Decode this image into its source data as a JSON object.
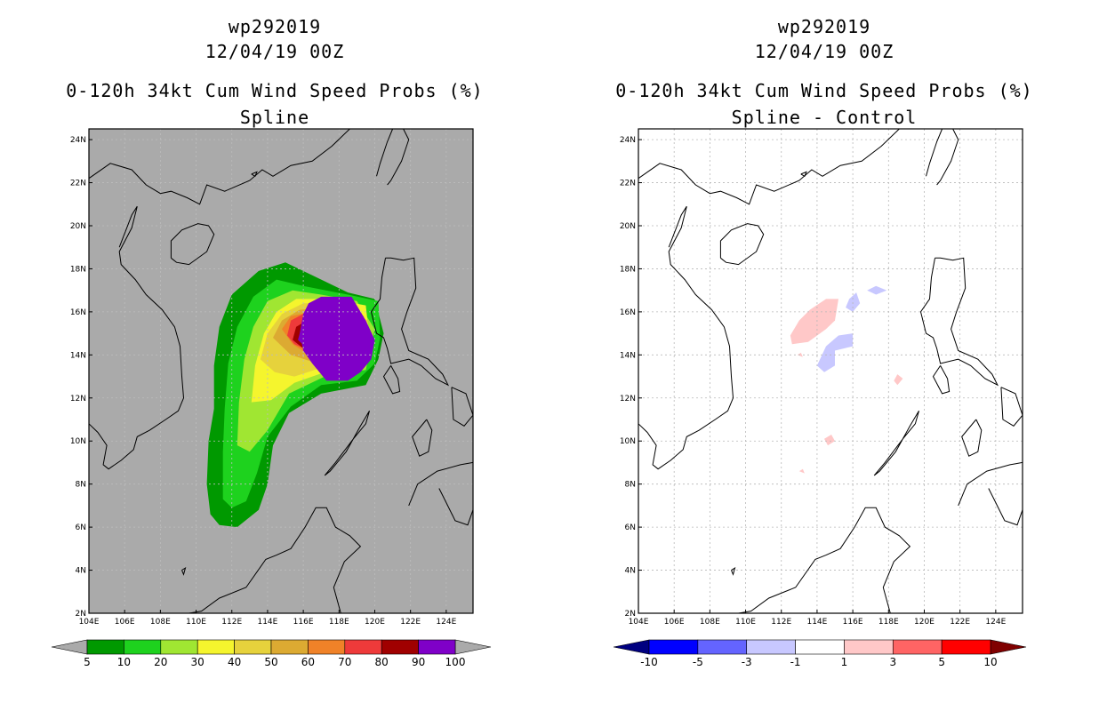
{
  "chart_data": [
    {
      "type": "heatmap",
      "storm_id": "wp292019",
      "date": "12/04/19 00Z",
      "title": "0-120h 34kt Cum Wind Speed Probs (%)",
      "subtitle": "Spline",
      "lon_range": [
        104,
        125.5
      ],
      "lat_range": [
        2,
        24.5
      ],
      "x_ticks": [
        "104E",
        "106E",
        "108E",
        "110E",
        "112E",
        "114E",
        "116E",
        "118E",
        "120E",
        "122E",
        "124E"
      ],
      "y_ticks": [
        "2N",
        "4N",
        "6N",
        "8N",
        "10N",
        "12N",
        "14N",
        "16N",
        "18N",
        "20N",
        "22N",
        "24N"
      ],
      "colorbar": {
        "labels": [
          "5",
          "10",
          "20",
          "30",
          "40",
          "50",
          "60",
          "70",
          "80",
          "90",
          "100"
        ],
        "colors": [
          "#009900",
          "#1ed21e",
          "#a0e632",
          "#f5f52d",
          "#e6d23c",
          "#dcaa32",
          "#f08228",
          "#ee3a3a",
          "#a00000",
          "#7f00c8"
        ],
        "end_color": "#aaaaaa"
      },
      "regions": [
        {
          "value": 5,
          "points": [
            [
              110.8,
              6.6
            ],
            [
              110.6,
              8.0
            ],
            [
              110.7,
              10.0
            ],
            [
              111.0,
              11.5
            ],
            [
              111.0,
              13.5
            ],
            [
              111.3,
              15.3
            ],
            [
              112.0,
              16.8
            ],
            [
              113.5,
              17.9
            ],
            [
              115.0,
              18.3
            ],
            [
              116.5,
              17.7
            ],
            [
              118.5,
              16.9
            ],
            [
              120.0,
              16.6
            ],
            [
              120.5,
              15.0
            ],
            [
              120.2,
              13.8
            ],
            [
              119.5,
              12.6
            ],
            [
              117.0,
              12.2
            ],
            [
              115.2,
              11.3
            ],
            [
              114.3,
              9.8
            ],
            [
              114.0,
              8.0
            ],
            [
              113.5,
              6.8
            ],
            [
              112.3,
              6.0
            ],
            [
              111.3,
              6.1
            ]
          ]
        },
        {
          "value": 10,
          "points": [
            [
              111.5,
              7.3
            ],
            [
              111.5,
              9.5
            ],
            [
              111.6,
              11.5
            ],
            [
              111.8,
              13.6
            ],
            [
              112.3,
              15.3
            ],
            [
              113.2,
              16.7
            ],
            [
              114.5,
              17.5
            ],
            [
              116.0,
              17.2
            ],
            [
              118.5,
              16.8
            ],
            [
              120.2,
              16.5
            ],
            [
              120.3,
              14.8
            ],
            [
              120.0,
              13.6
            ],
            [
              119.0,
              12.8
            ],
            [
              117.0,
              12.6
            ],
            [
              115.3,
              11.6
            ],
            [
              114.0,
              10.2
            ],
            [
              113.4,
              8.5
            ],
            [
              112.8,
              7.2
            ],
            [
              112.0,
              6.9
            ]
          ]
        },
        {
          "value": 20,
          "points": [
            [
              112.3,
              9.8
            ],
            [
              112.4,
              11.8
            ],
            [
              112.7,
              13.8
            ],
            [
              113.2,
              15.3
            ],
            [
              114.0,
              16.5
            ],
            [
              115.4,
              17.0
            ],
            [
              117.0,
              16.8
            ],
            [
              119.0,
              16.5
            ],
            [
              120.0,
              15.2
            ],
            [
              119.5,
              13.3
            ],
            [
              117.2,
              13.0
            ],
            [
              115.2,
              12.2
            ],
            [
              114.0,
              10.5
            ],
            [
              113.0,
              9.5
            ]
          ]
        },
        {
          "value": 30,
          "points": [
            [
              113.1,
              11.8
            ],
            [
              113.3,
              13.5
            ],
            [
              113.8,
              15.0
            ],
            [
              114.5,
              16.0
            ],
            [
              115.6,
              16.6
            ],
            [
              117.5,
              16.6
            ],
            [
              119.5,
              16.3
            ],
            [
              119.8,
              14.0
            ],
            [
              117.2,
              13.2
            ],
            [
              115.5,
              12.7
            ],
            [
              114.2,
              11.9
            ]
          ]
        },
        {
          "value": 40,
          "points": [
            [
              113.6,
              13.8
            ],
            [
              114.0,
              15.0
            ],
            [
              114.8,
              15.9
            ],
            [
              116.0,
              16.4
            ],
            [
              118.0,
              16.4
            ],
            [
              119.6,
              15.6
            ],
            [
              119.0,
              13.6
            ],
            [
              117.0,
              13.4
            ],
            [
              115.5,
              13.0
            ],
            [
              114.4,
              13.2
            ]
          ]
        },
        {
          "value": 50,
          "points": [
            [
              114.3,
              14.8
            ],
            [
              114.8,
              15.6
            ],
            [
              115.8,
              16.1
            ],
            [
              117.5,
              16.2
            ],
            [
              119.4,
              15.8
            ],
            [
              118.8,
              13.8
            ],
            [
              116.8,
              13.6
            ],
            [
              115.3,
              14.0
            ]
          ]
        },
        {
          "value": 60,
          "points": [
            [
              114.8,
              15.2
            ],
            [
              115.3,
              15.8
            ],
            [
              116.5,
              16.0
            ],
            [
              118.5,
              15.8
            ],
            [
              118.6,
              14.0
            ],
            [
              116.5,
              13.9
            ],
            [
              115.4,
              14.5
            ]
          ]
        },
        {
          "value": 70,
          "points": [
            [
              115.1,
              14.9
            ],
            [
              115.3,
              15.6
            ],
            [
              116.0,
              15.9
            ],
            [
              118.0,
              15.7
            ],
            [
              118.2,
              14.2
            ],
            [
              116.3,
              14.2
            ],
            [
              115.5,
              14.5
            ]
          ]
        },
        {
          "value": 80,
          "points": [
            [
              115.4,
              14.7
            ],
            [
              115.6,
              15.3
            ],
            [
              116.2,
              15.6
            ],
            [
              118.0,
              15.5
            ],
            [
              117.8,
              14.3
            ],
            [
              116.0,
              14.3
            ]
          ]
        },
        {
          "value": 90,
          "points": [
            [
              115.7,
              14.7
            ],
            [
              116.0,
              15.6
            ],
            [
              117.5,
              15.8
            ],
            [
              117.5,
              14.3
            ],
            [
              116.2,
              14.3
            ]
          ]
        },
        {
          "value": 100,
          "points": [
            [
              116.0,
              15.9
            ],
            [
              116.3,
              16.4
            ],
            [
              117.0,
              16.7
            ],
            [
              118.7,
              16.7
            ],
            [
              119.5,
              15.6
            ],
            [
              120.0,
              14.7
            ],
            [
              119.8,
              13.8
            ],
            [
              119.2,
              13.2
            ],
            [
              118.5,
              12.8
            ],
            [
              117.3,
              12.8
            ],
            [
              116.5,
              13.6
            ],
            [
              116.0,
              14.2
            ],
            [
              115.8,
              15.0
            ]
          ]
        }
      ]
    },
    {
      "type": "heatmap",
      "storm_id": "wp292019",
      "date": "12/04/19 00Z",
      "title": "0-120h 34kt Cum Wind Speed Probs (%)",
      "subtitle": "Spline - Control",
      "lon_range": [
        104,
        125.5
      ],
      "lat_range": [
        2,
        24.5
      ],
      "x_ticks": [
        "104E",
        "106E",
        "108E",
        "110E",
        "112E",
        "114E",
        "116E",
        "118E",
        "120E",
        "122E",
        "124E"
      ],
      "y_ticks": [
        "2N",
        "4N",
        "6N",
        "8N",
        "10N",
        "12N",
        "14N",
        "16N",
        "18N",
        "20N",
        "22N",
        "24N"
      ],
      "colorbar": {
        "labels": [
          "-10",
          "-5",
          "-3",
          "-1",
          "1",
          "3",
          "5",
          "10"
        ],
        "colors": [
          "#0000ff",
          "#6464ff",
          "#c8c8ff",
          "#ffffff",
          "#ffc8c8",
          "#ff6464",
          "#ff0000"
        ],
        "low_end_color": "#000080",
        "high_end_color": "#800000"
      },
      "regions": [
        {
          "value": 2,
          "points": [
            [
              112.5,
              14.9
            ],
            [
              113.0,
              15.6
            ],
            [
              113.6,
              16.1
            ],
            [
              114.5,
              16.6
            ],
            [
              115.2,
              16.6
            ],
            [
              115.0,
              15.6
            ],
            [
              114.5,
              15.2
            ],
            [
              113.5,
              14.6
            ],
            [
              112.6,
              14.5
            ]
          ]
        },
        {
          "value": -2,
          "points": [
            [
              115.6,
              16.2
            ],
            [
              115.8,
              16.6
            ],
            [
              116.2,
              16.9
            ],
            [
              116.4,
              16.4
            ],
            [
              116.0,
              16.0
            ]
          ]
        },
        {
          "value": -2,
          "points": [
            [
              116.8,
              17.0
            ],
            [
              117.3,
              17.2
            ],
            [
              117.9,
              17.0
            ],
            [
              117.3,
              16.8
            ]
          ]
        },
        {
          "value": -2,
          "points": [
            [
              114.0,
              13.5
            ],
            [
              114.5,
              14.4
            ],
            [
              115.2,
              14.9
            ],
            [
              116.0,
              15.0
            ],
            [
              116.0,
              14.4
            ],
            [
              115.0,
              14.2
            ],
            [
              115.0,
              13.5
            ],
            [
              114.4,
              13.2
            ]
          ]
        },
        {
          "value": 2,
          "points": [
            [
              112.9,
              14.0
            ],
            [
              113.1,
              14.1
            ],
            [
              113.2,
              13.9
            ]
          ]
        },
        {
          "value": 2,
          "points": [
            [
              118.3,
              12.8
            ],
            [
              118.5,
              13.1
            ],
            [
              118.8,
              12.9
            ],
            [
              118.5,
              12.6
            ]
          ]
        },
        {
          "value": 2,
          "points": [
            [
              114.4,
              10.1
            ],
            [
              114.8,
              10.3
            ],
            [
              115.0,
              10.0
            ],
            [
              114.6,
              9.8
            ]
          ]
        },
        {
          "value": 2,
          "points": [
            [
              113.0,
              8.6
            ],
            [
              113.2,
              8.7
            ],
            [
              113.3,
              8.5
            ]
          ]
        }
      ]
    }
  ]
}
